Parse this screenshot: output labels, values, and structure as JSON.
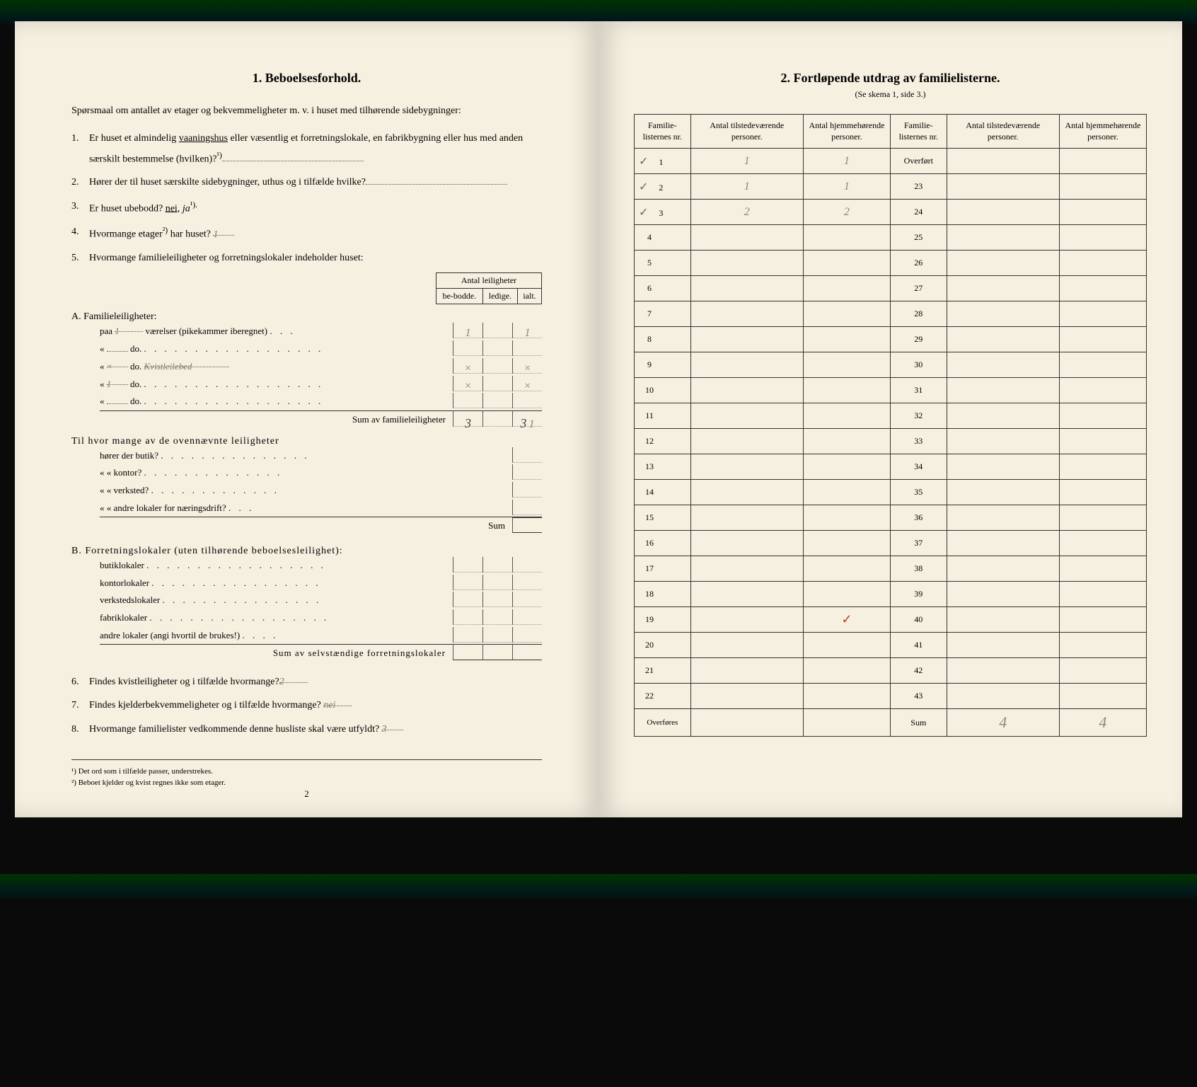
{
  "left": {
    "section_num": "1.",
    "section_title": "Beboelsesforhold.",
    "intro": "Spørsmaal om antallet av etager og bekvemmeligheter m. v. i huset med tilhørende sidebygninger:",
    "q1_num": "1.",
    "q1_text_a": "Er huset et almindelig ",
    "q1_underline": "vaaningshus",
    "q1_text_b": " eller væsentlig et forretningslokale, en fabrikbygning eller hus med anden særskilt bestemmelse (hvilken)?",
    "q1_sup": "¹)",
    "q2_num": "2.",
    "q2_text": "Hører der til huset særskilte sidebygninger, uthus og i tilfælde hvilke?",
    "q3_num": "3.",
    "q3_text_a": "Er huset ubebodd? ",
    "q3_nei": "nei,",
    "q3_ja": "ja",
    "q3_sup": "¹).",
    "q4_num": "4.",
    "q4_text_a": "Hvormange etager",
    "q4_sup": "²)",
    "q4_text_b": " har huset?",
    "q4_answer": "1",
    "q5_num": "5.",
    "q5_text": "Hvormange familieleiligheter og forretningslokaler indeholder huset:",
    "table_header_main": "Antal leiligheter",
    "th_bebodde": "be-bodde.",
    "th_ledige": "ledige.",
    "th_ialt": "ialt.",
    "sectA_title": "A. Familieleiligheter:",
    "sectA_r1": "paa",
    "sectA_r1_val": "1",
    "sectA_r1_text": "værelser (pikekammer iberegnet)",
    "sectA_do": "do.",
    "sectA_sum": "Sum av familieleiligheter",
    "sectA_sum_bebodde": "3",
    "sectA_sum_ialt": "3",
    "sectA_sum_total": "1",
    "til_text": "Til hvor mange av de ovennævnte leiligheter",
    "til_butik": "hører der butik?",
    "til_kontor": "kontor?",
    "til_verksted": "verksted?",
    "til_andre": "andre lokaler for næringsdrift?",
    "til_sum": "Sum",
    "sectB_title": "B. Forretningslokaler (uten tilhørende beboelsesleilighet):",
    "sectB_butik": "butiklokaler",
    "sectB_kontor": "kontorlokaler",
    "sectB_verksted": "verkstedslokaler",
    "sectB_fabrik": "fabriklokaler",
    "sectB_andre": "andre lokaler (angi hvortil de brukes!)",
    "sectB_sum": "Sum av selvstændige forretningslokaler",
    "q6_num": "6.",
    "q6_text": "Findes kvistleiligheter og i tilfælde hvormange?",
    "q6_answer": "2",
    "q7_num": "7.",
    "q7_text": "Findes kjelderbekvemmeligheter og i tilfælde hvormange?",
    "q7_answer": "nei",
    "q8_num": "8.",
    "q8_text": "Hvormange familielister vedkommende denne husliste skal være utfyldt?",
    "q8_answer": "3",
    "fn1": "¹) Det ord som i tilfælde passer, understrekes.",
    "fn2": "²) Beboet kjelder og kvist regnes ikke som etager.",
    "page_num": "2"
  },
  "right": {
    "section_num": "2.",
    "section_title": "Fortløpende utdrag av familielisterne.",
    "subtitle": "(Se skema 1, side 3.)",
    "th_famnr": "Familie-listernes nr.",
    "th_tilstede": "Antal tilstedeværende personer.",
    "th_hjemme": "Antal hjemmehørende personer.",
    "left_rows": [
      {
        "check": "✓",
        "nr": "1",
        "t": "1",
        "h": "1"
      },
      {
        "check": "✓",
        "nr": "2",
        "t": "1",
        "h": "1"
      },
      {
        "check": "✓",
        "nr": "3",
        "t": "2",
        "h": "2"
      },
      {
        "check": "",
        "nr": "4",
        "t": "",
        "h": ""
      },
      {
        "check": "",
        "nr": "5",
        "t": "",
        "h": ""
      },
      {
        "check": "",
        "nr": "6",
        "t": "",
        "h": ""
      },
      {
        "check": "",
        "nr": "7",
        "t": "",
        "h": ""
      },
      {
        "check": "",
        "nr": "8",
        "t": "",
        "h": ""
      },
      {
        "check": "",
        "nr": "9",
        "t": "",
        "h": ""
      },
      {
        "check": "",
        "nr": "10",
        "t": "",
        "h": ""
      },
      {
        "check": "",
        "nr": "11",
        "t": "",
        "h": ""
      },
      {
        "check": "",
        "nr": "12",
        "t": "",
        "h": ""
      },
      {
        "check": "",
        "nr": "13",
        "t": "",
        "h": ""
      },
      {
        "check": "",
        "nr": "14",
        "t": "",
        "h": ""
      },
      {
        "check": "",
        "nr": "15",
        "t": "",
        "h": ""
      },
      {
        "check": "",
        "nr": "16",
        "t": "",
        "h": ""
      },
      {
        "check": "",
        "nr": "17",
        "t": "",
        "h": ""
      },
      {
        "check": "",
        "nr": "18",
        "t": "",
        "h": ""
      },
      {
        "check": "",
        "nr": "19",
        "t": "",
        "h": "✓"
      },
      {
        "check": "",
        "nr": "20",
        "t": "",
        "h": ""
      },
      {
        "check": "",
        "nr": "21",
        "t": "",
        "h": ""
      },
      {
        "check": "",
        "nr": "22",
        "t": "",
        "h": ""
      }
    ],
    "right_rows": [
      {
        "nr": "Overført",
        "t": "",
        "h": ""
      },
      {
        "nr": "23",
        "t": "",
        "h": ""
      },
      {
        "nr": "24",
        "t": "",
        "h": ""
      },
      {
        "nr": "25",
        "t": "",
        "h": ""
      },
      {
        "nr": "26",
        "t": "",
        "h": ""
      },
      {
        "nr": "27",
        "t": "",
        "h": ""
      },
      {
        "nr": "28",
        "t": "",
        "h": ""
      },
      {
        "nr": "29",
        "t": "",
        "h": ""
      },
      {
        "nr": "30",
        "t": "",
        "h": ""
      },
      {
        "nr": "31",
        "t": "",
        "h": ""
      },
      {
        "nr": "32",
        "t": "",
        "h": ""
      },
      {
        "nr": "33",
        "t": "",
        "h": ""
      },
      {
        "nr": "34",
        "t": "",
        "h": ""
      },
      {
        "nr": "35",
        "t": "",
        "h": ""
      },
      {
        "nr": "36",
        "t": "",
        "h": ""
      },
      {
        "nr": "37",
        "t": "",
        "h": ""
      },
      {
        "nr": "38",
        "t": "",
        "h": ""
      },
      {
        "nr": "39",
        "t": "",
        "h": ""
      },
      {
        "nr": "40",
        "t": "",
        "h": ""
      },
      {
        "nr": "41",
        "t": "",
        "h": ""
      },
      {
        "nr": "42",
        "t": "",
        "h": ""
      },
      {
        "nr": "43",
        "t": "",
        "h": ""
      }
    ],
    "overfor": "Overføres",
    "sum_label": "Sum",
    "sum_t": "4",
    "sum_h": "4"
  }
}
